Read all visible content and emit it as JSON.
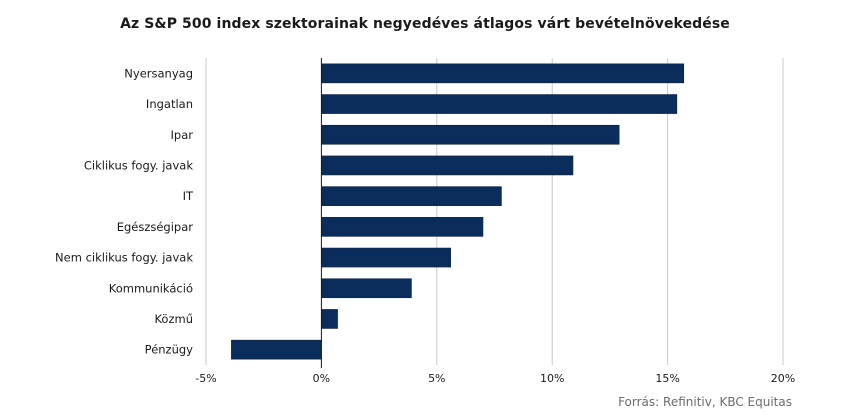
{
  "chart_data": {
    "type": "bar",
    "orientation": "horizontal",
    "title": "Az S&P 500 index szektorainak negyedéves átlagos várt bevételnövekedése",
    "categories": [
      "Nyersanyag",
      "Ingatlan",
      "Ipar",
      "Ciklikus fogy. javak",
      "IT",
      "Egészségipar",
      "Nem ciklikus fogy. javak",
      "Kommunikáció",
      "Közmű",
      "Pénzügy"
    ],
    "values": [
      15.7,
      15.4,
      12.9,
      10.9,
      7.8,
      7.0,
      5.6,
      3.9,
      0.7,
      -3.9
    ],
    "unit": "%",
    "xlim": [
      -5,
      20
    ],
    "xticks": [
      -5,
      0,
      5,
      10,
      15,
      20
    ],
    "xtick_labels": [
      "-5%",
      "0%",
      "5%",
      "10%",
      "15%",
      "20%"
    ],
    "grid": "vertical",
    "legend": "none",
    "bar_color": "#0b2d5b",
    "grid_color": "#c8c8c8",
    "source": "Forrás: Refinitiv, KBC Equitas"
  }
}
